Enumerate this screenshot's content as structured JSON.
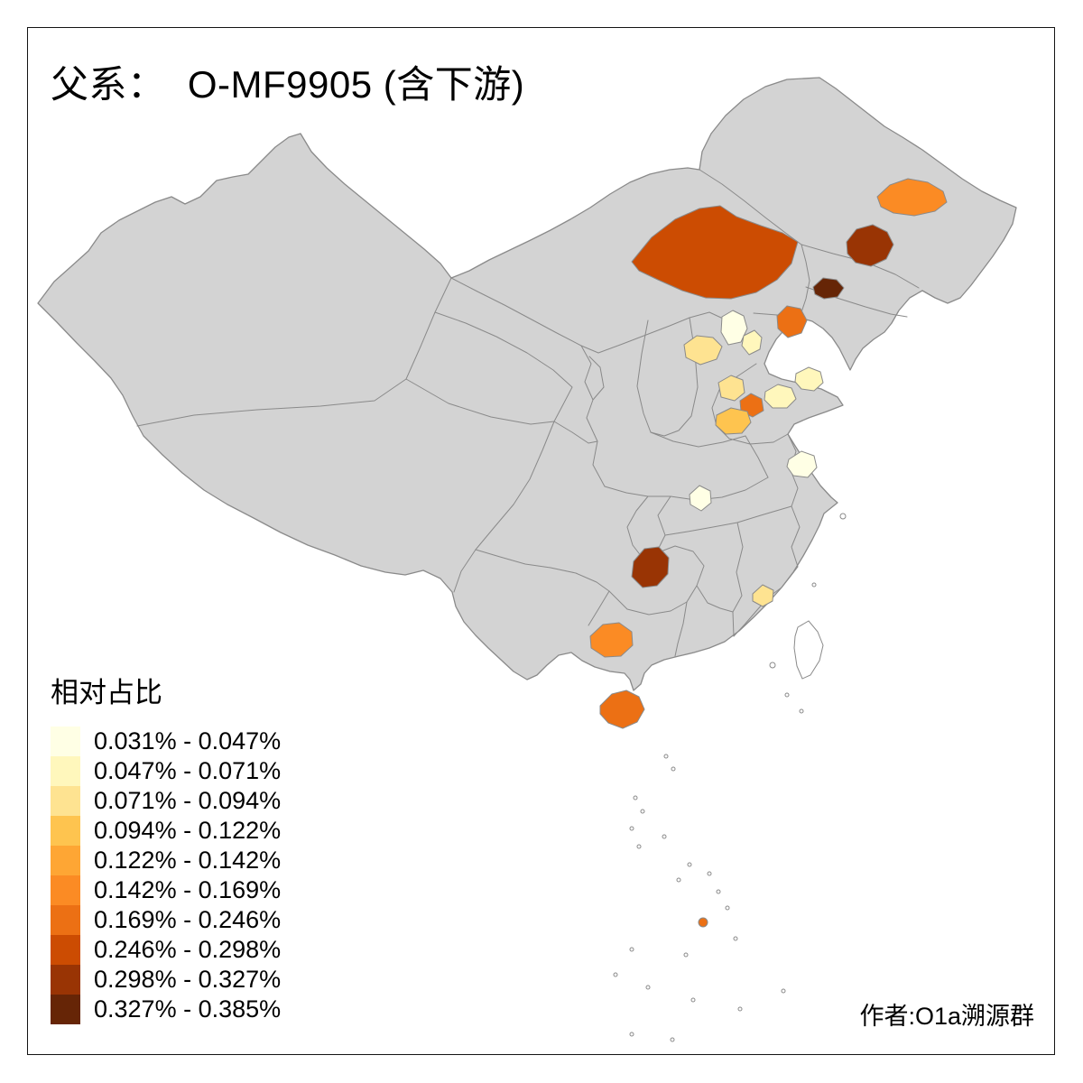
{
  "title": "父系：  O-MF9905 (含下游)",
  "attribution": "作者:O1a溯源群",
  "legend": {
    "title": "相对占比",
    "classes": [
      {
        "label": "0.031% - 0.047%",
        "color": "#FFFFE5"
      },
      {
        "label": "0.047% - 0.071%",
        "color": "#FFF7BC"
      },
      {
        "label": "0.071% - 0.094%",
        "color": "#FEE391"
      },
      {
        "label": "0.094% - 0.122%",
        "color": "#FEC44F"
      },
      {
        "label": "0.122% - 0.142%",
        "color": "#FEA634"
      },
      {
        "label": "0.142% - 0.169%",
        "color": "#FB8B24"
      },
      {
        "label": "0.169% - 0.246%",
        "color": "#EC7014"
      },
      {
        "label": "0.246% - 0.298%",
        "color": "#CC4C02"
      },
      {
        "label": "0.298% - 0.327%",
        "color": "#993404"
      },
      {
        "label": "0.327% - 0.385%",
        "color": "#662506"
      }
    ]
  },
  "map": {
    "type": "choropleth-map",
    "base_fill": "#d3d3d3",
    "border_color": "#8a8a8a",
    "no_data_fill": "#ffffff",
    "regions": [
      {
        "id": "xilingol",
        "class": 7
      },
      {
        "id": "heilongjiang-central",
        "class": 5
      },
      {
        "id": "jilin-north",
        "class": 8
      },
      {
        "id": "jilin-southwest",
        "class": 9
      },
      {
        "id": "liaoning-west-coast",
        "class": 6
      },
      {
        "id": "beijing",
        "class": 0
      },
      {
        "id": "tianjin",
        "class": 1
      },
      {
        "id": "hebei-central",
        "class": 2
      },
      {
        "id": "shandong-northwest",
        "class": 2
      },
      {
        "id": "shandong-north-coast",
        "class": 1
      },
      {
        "id": "shandong-central",
        "class": 1
      },
      {
        "id": "shandong-jinan",
        "class": 6
      },
      {
        "id": "shandong-southwest",
        "class": 3
      },
      {
        "id": "jiangsu-central",
        "class": 0
      },
      {
        "id": "hubei-central",
        "class": 0
      },
      {
        "id": "guizhou-central",
        "class": 8
      },
      {
        "id": "fujian-coast",
        "class": 2
      },
      {
        "id": "guangxi-south",
        "class": 5
      },
      {
        "id": "hainan",
        "class": 6
      },
      {
        "id": "south-china-sea-islet",
        "class": 6
      }
    ]
  }
}
